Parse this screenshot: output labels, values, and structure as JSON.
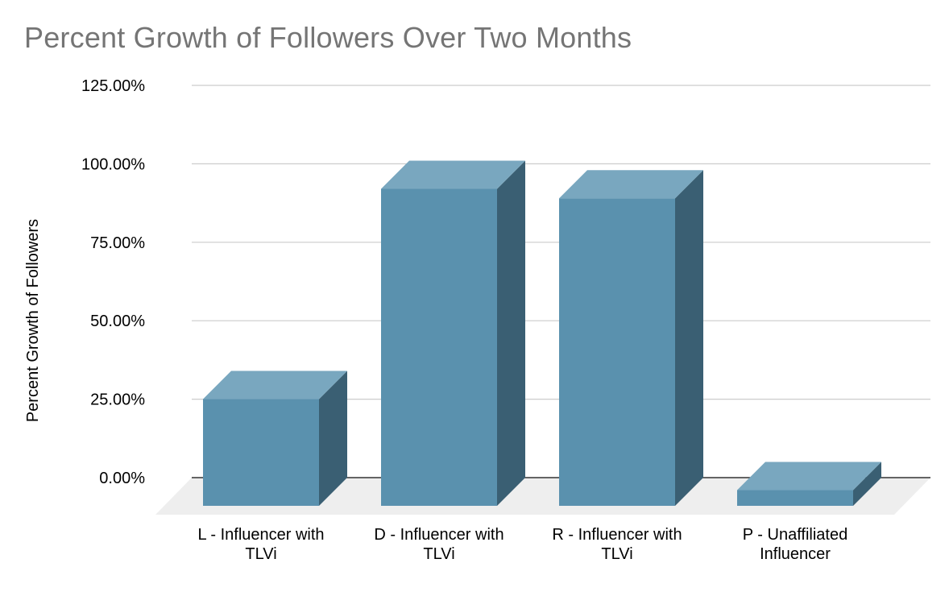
{
  "chart_data": {
    "type": "bar",
    "title": "Percent Growth of Followers Over Two Months",
    "xlabel": "",
    "ylabel": "Percent Growth of Followers",
    "ylim": [
      0,
      125
    ],
    "yticks": [
      "0.00%",
      "25.00%",
      "50.00%",
      "75.00%",
      "100.00%",
      "125.00%"
    ],
    "categories": [
      "L - Influencer with TLVi",
      "D - Influencer with TLVi",
      "R - Influencer with TLVi",
      "P - Unaffiliated Influencer"
    ],
    "category_label_lines": [
      [
        "L - Influencer with",
        "TLVi"
      ],
      [
        "D - Influencer with",
        "TLVi"
      ],
      [
        "R - Influencer with",
        "TLVi"
      ],
      [
        "P - Unaffiliated",
        "Influencer"
      ]
    ],
    "values": [
      34,
      101,
      98,
      5
    ],
    "legend": "none",
    "grid": true,
    "style": "3d",
    "colors": {
      "bar_front": "#5a91ae",
      "bar_top": "#79a7bf",
      "bar_side": "#3a5f73",
      "floor": "#eeeeee",
      "grid": "#cccccc",
      "axis": "#333333",
      "title": "#757575",
      "text": "#000000"
    }
  }
}
